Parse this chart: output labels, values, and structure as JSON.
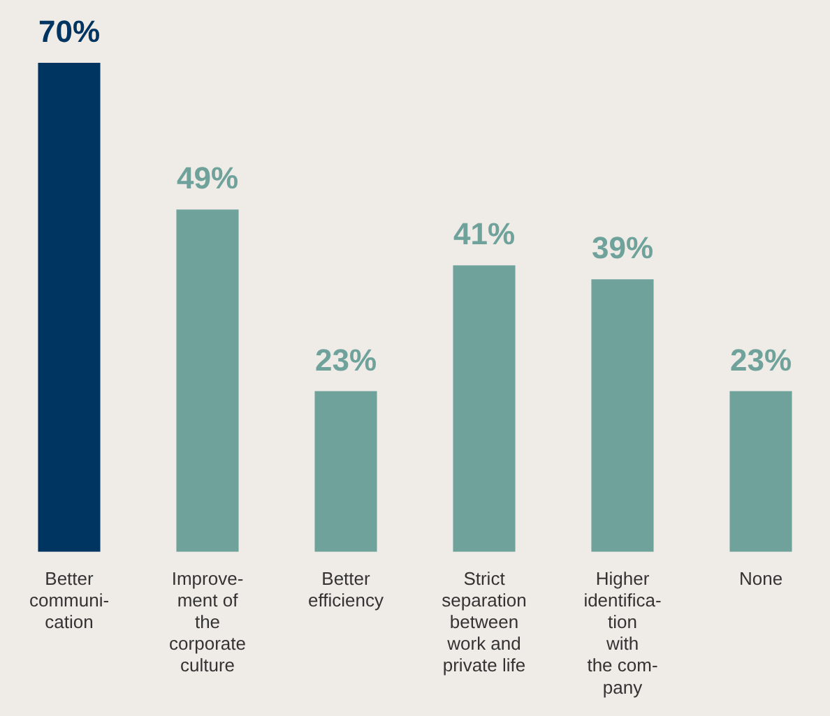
{
  "chart_data": {
    "type": "bar",
    "categories": [
      "Better\ncommuni-\ncation",
      "Improve-\nment of\nthe\ncorporate\nculture",
      "Better\nefficiency",
      "Strict\nseparation\nbetween\nwork and\nprivate life",
      "Higher\nidentifica-\ntion\nwith\nthe com-\npany",
      "None"
    ],
    "values": [
      70,
      49,
      23,
      41,
      39,
      23
    ],
    "colors": [
      "#003461",
      "#6ea29b",
      "#6ea29b",
      "#6ea29b",
      "#6ea29b",
      "#6ea29b"
    ],
    "value_labels": [
      "70%",
      "49%",
      "23%",
      "41%",
      "39%",
      "23%"
    ],
    "grid": false,
    "legend": false
  }
}
